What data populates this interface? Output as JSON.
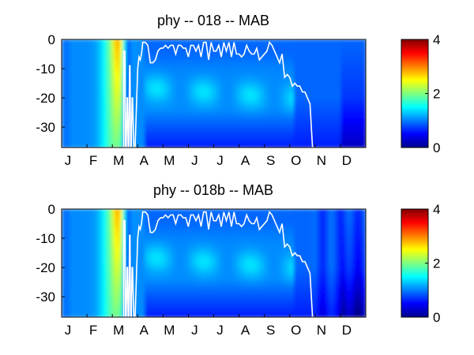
{
  "chart_data": [
    {
      "type": "heatmap",
      "title": "phy -- 018 -- MAB",
      "xlabel": "",
      "ylabel": "",
      "x_tick_labels": [
        "J",
        "F",
        "M",
        "A",
        "M",
        "J",
        "J",
        "A",
        "S",
        "O",
        "N",
        "D"
      ],
      "y_tick_labels": [
        "0",
        "-10",
        "-20",
        "-30"
      ],
      "y_ticks": [
        0,
        -10,
        -20,
        -30
      ],
      "ylim": [
        -37,
        0
      ],
      "colorbar": {
        "min": 0,
        "max": 4,
        "tick_labels": [
          "0",
          "2",
          "4"
        ],
        "ticks": [
          0,
          2,
          4
        ],
        "colormap": "jet"
      },
      "overlay_line": {
        "color": "#ffffff",
        "month": [
          2.45,
          2.45,
          2.5,
          2.52,
          2.55,
          2.58,
          2.6,
          2.62,
          2.65,
          2.68,
          2.7,
          2.72,
          2.75,
          2.78,
          2.8,
          2.85,
          2.9,
          3.0,
          3.05,
          3.1,
          3.15,
          3.2,
          3.3,
          3.4,
          3.5,
          3.6,
          3.7,
          3.8,
          3.9,
          4.0,
          4.1,
          4.2,
          4.3,
          4.4,
          4.5,
          4.6,
          4.7,
          4.8,
          4.9,
          5.0,
          5.1,
          5.2,
          5.3,
          5.4,
          5.5,
          5.6,
          5.7,
          5.8,
          5.9,
          6.0,
          6.1,
          6.2,
          6.3,
          6.4,
          6.5,
          6.6,
          6.7,
          6.8,
          6.9,
          7.0,
          7.1,
          7.2,
          7.3,
          7.4,
          7.5,
          7.6,
          7.7,
          7.8,
          7.9,
          8.0,
          8.1,
          8.2,
          8.3,
          8.4,
          8.5,
          8.6,
          8.7,
          8.8,
          8.9,
          9.0,
          9.1,
          9.2,
          9.3,
          9.4,
          9.5,
          9.6,
          9.7,
          9.8,
          9.9,
          10.0
        ],
        "depth": [
          -37,
          -4,
          -4,
          -37,
          -37,
          -20,
          -20,
          -37,
          -37,
          -9,
          -9,
          -37,
          -37,
          -20,
          -20,
          -37,
          -37,
          -10,
          -6,
          -7,
          -5,
          -1,
          -1,
          -2,
          -8,
          -8,
          -7,
          -4,
          -3,
          -3,
          -2,
          -3,
          -2,
          -2,
          -5,
          -2,
          -2,
          -3,
          -3,
          -6,
          -2,
          -2,
          -4,
          -2,
          -6,
          -1,
          -1,
          -7,
          -1,
          -4,
          -4,
          -2,
          -6,
          -1,
          -4,
          -1,
          -6,
          -1,
          -5,
          -5,
          -6,
          -5,
          -2,
          -4,
          -5,
          -5,
          -3,
          -7,
          -6,
          -5,
          -4,
          -1,
          -2,
          -4,
          -6,
          -8,
          -5,
          -13,
          -12,
          -13,
          -16,
          -15,
          -16,
          -16,
          -18,
          -18,
          -20,
          -22,
          -37,
          -37
        ]
      }
    },
    {
      "type": "heatmap",
      "title": "phy -- 018b -- MAB",
      "xlabel": "",
      "ylabel": "",
      "x_tick_labels": [
        "J",
        "F",
        "M",
        "A",
        "M",
        "J",
        "J",
        "A",
        "S",
        "O",
        "N",
        "D"
      ],
      "y_tick_labels": [
        "0",
        "-10",
        "-20",
        "-30"
      ],
      "y_ticks": [
        0,
        -10,
        -20,
        -30
      ],
      "ylim": [
        -37,
        0
      ],
      "colorbar": {
        "min": 0,
        "max": 4,
        "tick_labels": [
          "0",
          "2",
          "4"
        ],
        "ticks": [
          0,
          2,
          4
        ],
        "colormap": "jet"
      },
      "overlay_line": {
        "color": "#ffffff",
        "month": [
          2.45,
          2.45,
          2.5,
          2.52,
          2.55,
          2.58,
          2.6,
          2.62,
          2.65,
          2.68,
          2.7,
          2.72,
          2.75,
          2.78,
          2.8,
          2.85,
          2.9,
          3.0,
          3.05,
          3.1,
          3.15,
          3.2,
          3.3,
          3.4,
          3.5,
          3.6,
          3.7,
          3.8,
          3.9,
          4.0,
          4.1,
          4.2,
          4.3,
          4.4,
          4.5,
          4.6,
          4.7,
          4.8,
          4.9,
          5.0,
          5.1,
          5.2,
          5.3,
          5.4,
          5.5,
          5.6,
          5.7,
          5.8,
          5.9,
          6.0,
          6.1,
          6.2,
          6.3,
          6.4,
          6.5,
          6.6,
          6.7,
          6.8,
          6.9,
          7.0,
          7.1,
          7.2,
          7.3,
          7.4,
          7.5,
          7.6,
          7.7,
          7.8,
          7.9,
          8.0,
          8.1,
          8.2,
          8.3,
          8.4,
          8.5,
          8.6,
          8.7,
          8.8,
          8.9,
          9.0,
          9.1,
          9.2,
          9.3,
          9.4,
          9.5,
          9.6,
          9.7,
          9.8,
          9.9,
          10.0
        ],
        "depth": [
          -37,
          -4,
          -4,
          -37,
          -37,
          -20,
          -20,
          -37,
          -37,
          -9,
          -9,
          -37,
          -37,
          -20,
          -20,
          -37,
          -37,
          -10,
          -6,
          -7,
          -5,
          -1,
          -1,
          -2,
          -8,
          -8,
          -7,
          -4,
          -3,
          -3,
          -2,
          -3,
          -2,
          -2,
          -5,
          -2,
          -2,
          -3,
          -3,
          -6,
          -2,
          -2,
          -4,
          -2,
          -6,
          -1,
          -1,
          -7,
          -1,
          -4,
          -4,
          -2,
          -6,
          -1,
          -4,
          -1,
          -6,
          -1,
          -5,
          -5,
          -6,
          -5,
          -2,
          -4,
          -5,
          -5,
          -3,
          -7,
          -6,
          -5,
          -4,
          -1,
          -2,
          -4,
          -6,
          -8,
          -5,
          -13,
          -12,
          -13,
          -16,
          -15,
          -16,
          -16,
          -18,
          -18,
          -20,
          -22,
          -37,
          -37
        ]
      }
    }
  ]
}
